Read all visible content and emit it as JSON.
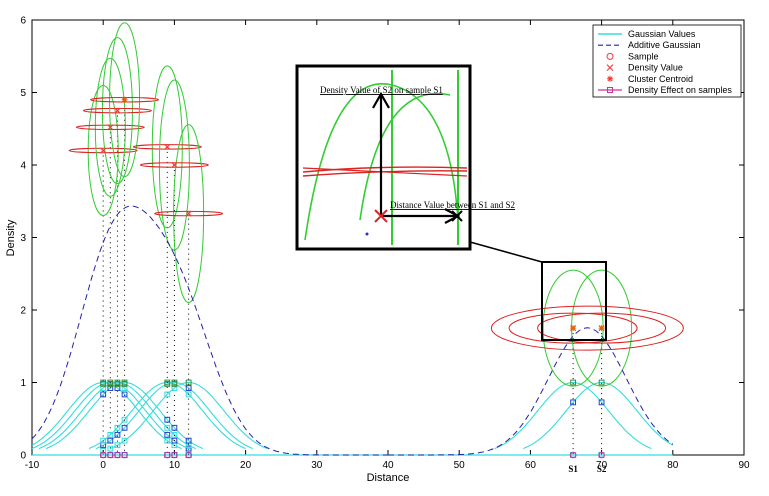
{
  "chart_data": {
    "type": "line",
    "xlabel": "Distance",
    "ylabel": "Density",
    "xlim": [
      -10,
      90
    ],
    "ylim": [
      0,
      6
    ],
    "xticks": [
      "-10",
      "0",
      "10",
      "20",
      "30",
      "40",
      "50",
      "60",
      "70",
      "80",
      "90"
    ],
    "yticks": [
      "0",
      "1",
      "2",
      "3",
      "4",
      "5",
      "6"
    ],
    "grid": false,
    "legend_position": "top-right",
    "legend": [
      {
        "label": "Gaussian Values",
        "color": "#33dddd",
        "style": "line"
      },
      {
        "label": "Additive Gaussian",
        "color": "#2222aa",
        "style": "dashed"
      },
      {
        "label": "Sample",
        "color": "#ff3333",
        "style": "circle"
      },
      {
        "label": "Density Value",
        "color": "#ff3333",
        "style": "x"
      },
      {
        "label": "Cluster Centroid",
        "color": "#ff3333",
        "style": "star"
      },
      {
        "label": "Density Effect on samples",
        "color": "#cc3399",
        "style": "square-line"
      }
    ],
    "samples_x": [
      0,
      1,
      2,
      3,
      9,
      10,
      12,
      66,
      70
    ],
    "gaussian_sigma": 5,
    "density_values": [
      {
        "x": 0,
        "y": 4.2
      },
      {
        "x": 1,
        "y": 4.52
      },
      {
        "x": 2,
        "y": 4.75
      },
      {
        "x": 3,
        "y": 4.9
      },
      {
        "x": 9,
        "y": 4.25
      },
      {
        "x": 10,
        "y": 4.0
      },
      {
        "x": 12,
        "y": 3.33
      },
      {
        "x": 66,
        "y": 1.75
      },
      {
        "x": 70,
        "y": 1.75
      }
    ],
    "cluster_centroids": [
      {
        "x": 3,
        "y": 4.9
      },
      {
        "x": 66,
        "y": 1.75
      },
      {
        "x": 70,
        "y": 1.75
      }
    ],
    "point_labels": [
      {
        "x": 66,
        "label": "S1"
      },
      {
        "x": 70,
        "label": "S2"
      }
    ],
    "inset": {
      "annotations": [
        "Density Value of S2 on sample S1",
        "Distance Value between S1 and S2"
      ]
    },
    "colors": {
      "gaussian": "#33dddd",
      "additive": "#2222aa",
      "ellipse_green": "#33cc33",
      "ellipse_red": "#dd2222",
      "marker_red": "#ff3333",
      "effect": "#cc3399"
    }
  }
}
